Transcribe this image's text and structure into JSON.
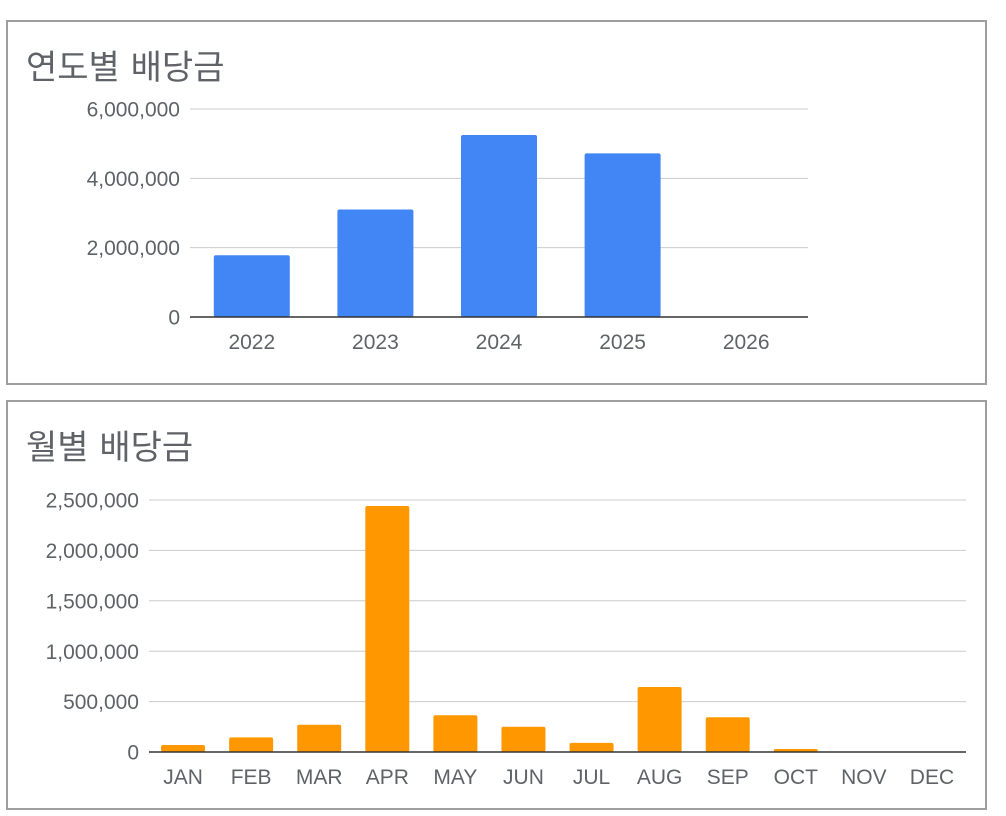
{
  "colors": {
    "annual_bar": "#4285f4",
    "monthly_bar": "#ff9800",
    "grid": "#cccccc",
    "axis": "#333333",
    "text": "#5f6368"
  },
  "chart_data": [
    {
      "type": "bar",
      "title": "연도별 배당금",
      "categories": [
        "2022",
        "2023",
        "2024",
        "2025",
        "2026"
      ],
      "values": [
        1780000,
        3100000,
        5250000,
        4720000,
        0
      ],
      "ylim": [
        0,
        6000000
      ],
      "yticks": [
        0,
        2000000,
        4000000,
        6000000
      ],
      "ytick_labels": [
        "0",
        "2,000,000",
        "4,000,000",
        "6,000,000"
      ],
      "grid": true,
      "legend": "none"
    },
    {
      "type": "bar",
      "title": "월별 배당금",
      "categories": [
        "JAN",
        "FEB",
        "MAR",
        "APR",
        "MAY",
        "JUN",
        "JUL",
        "AUG",
        "SEP",
        "OCT",
        "NOV",
        "DEC"
      ],
      "values": [
        70000,
        145000,
        270000,
        2440000,
        365000,
        250000,
        90000,
        645000,
        345000,
        30000,
        0,
        0
      ],
      "ylim": [
        0,
        2500000
      ],
      "yticks": [
        0,
        500000,
        1000000,
        1500000,
        2000000,
        2500000
      ],
      "ytick_labels": [
        "0",
        "500,000",
        "1,000,000",
        "1,500,000",
        "2,000,000",
        "2,500,000"
      ],
      "grid": true,
      "legend": "none"
    }
  ]
}
